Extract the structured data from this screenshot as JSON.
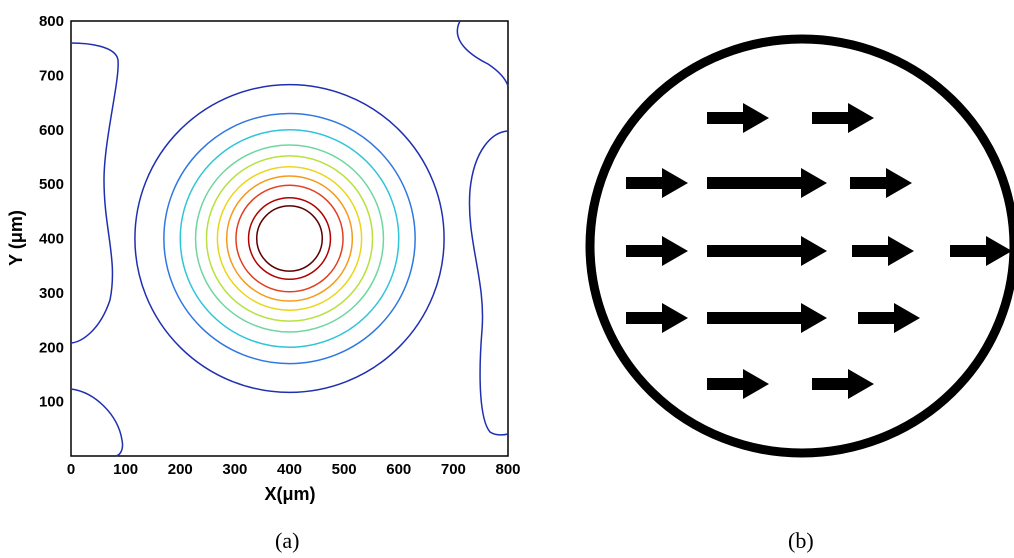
{
  "captions": {
    "a": "(a)",
    "b": "(b)"
  },
  "chart_data": [
    {
      "type": "contour",
      "xlabel": "X(μm)",
      "ylabel": "Y (μm)",
      "xlim": [
        0,
        800
      ],
      "ylim": [
        0,
        800
      ],
      "xticks": [
        0,
        100,
        200,
        300,
        400,
        500,
        600,
        700,
        800
      ],
      "yticks": [
        100,
        200,
        300,
        400,
        500,
        600,
        700,
        800
      ],
      "center": {
        "x": 400,
        "y": 400
      },
      "contour_radii_um": [
        60,
        75,
        98,
        115,
        132,
        152,
        172,
        200,
        230,
        283
      ],
      "contour_colors": [
        "#5a0000",
        "#b00000",
        "#e04020",
        "#f59a1c",
        "#ead61a",
        "#b8e040",
        "#6fd6a0",
        "#2fc4d8",
        "#2e78e0",
        "#1f2fb0"
      ],
      "grid": false,
      "corner_contour_color": "#1f2fb0"
    },
    {
      "type": "schematic",
      "shape": "circle",
      "arrow_rows": [
        {
          "y_level": 1,
          "arrows": [
            {
              "length": "short"
            },
            {
              "length": "short"
            }
          ]
        },
        {
          "y_level": 2,
          "arrows": [
            {
              "length": "short"
            },
            {
              "length": "long"
            },
            {
              "length": "short"
            }
          ]
        },
        {
          "y_level": 3,
          "arrows": [
            {
              "length": "short"
            },
            {
              "length": "long"
            },
            {
              "length": "short"
            },
            {
              "length": "short"
            }
          ]
        },
        {
          "y_level": 4,
          "arrows": [
            {
              "length": "short"
            },
            {
              "length": "long"
            },
            {
              "length": "short"
            }
          ]
        },
        {
          "y_level": 5,
          "arrows": [
            {
              "length": "short"
            },
            {
              "length": "short"
            }
          ]
        }
      ],
      "arrow_color": "#000000"
    }
  ]
}
